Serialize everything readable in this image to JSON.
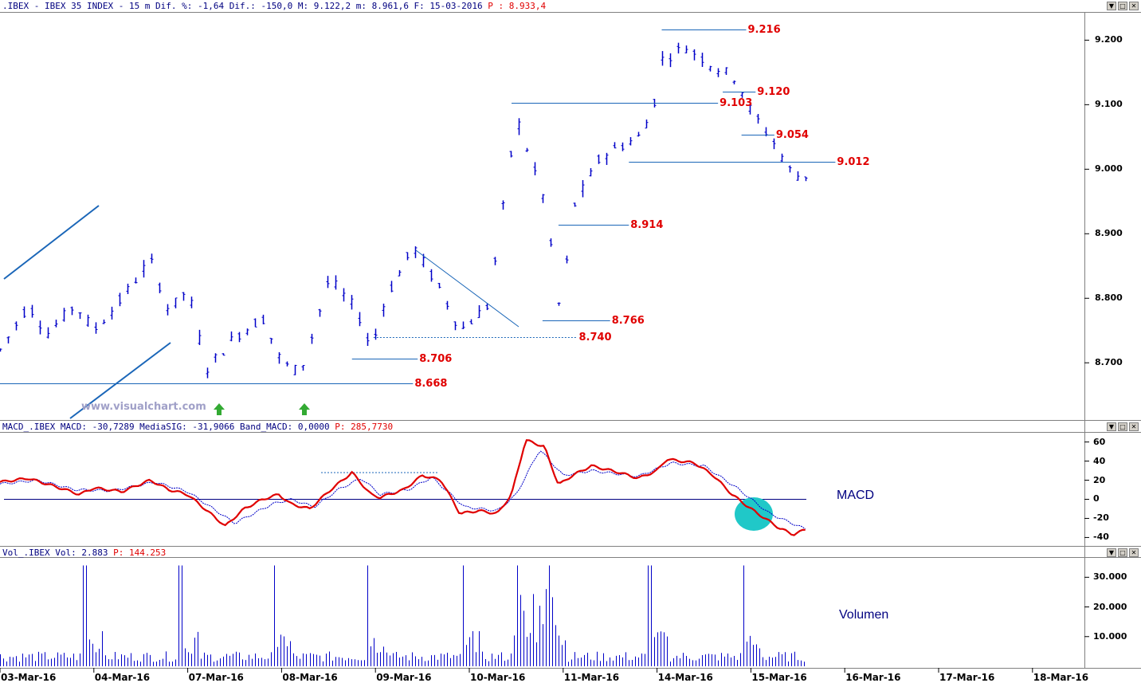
{
  "header": {
    "main_title": ".IBEX - IBEX 35 INDEX -  15 m Dif. %: -1,64 Dif.: -150,0 M: 9.122,2 m: 8.961,6 F: 15-03-2016",
    "main_price": "P : 8.933,4",
    "macd_title": "MACD_.IBEX MACD: -30,7289 MediaSIG: -31,9066 Band_MACD: 0,0000",
    "macd_price": "P: 285,7730",
    "vol_title": "Vol_.IBEX Vol: 2.883",
    "vol_price": "P: 144.253"
  },
  "window_buttons": {
    "minimize": "▼",
    "maximize": "□",
    "close": "✕"
  },
  "watermark": "www.visualchart.com",
  "panel_labels": {
    "macd": "MACD",
    "volume": "Volumen"
  },
  "colors": {
    "price": "#0000c8",
    "level_line": "#1a66b8",
    "level_text": "#e00000",
    "macd": "#e00000",
    "signal": "#0000c8",
    "highlight": "#20c8c8"
  },
  "chart_data": [
    {
      "type": "candlestick",
      "title": "IBEX 35 INDEX 15 m",
      "x_dates": [
        "03-Mar-16",
        "04-Mar-16",
        "07-Mar-16",
        "08-Mar-16",
        "09-Mar-16",
        "10-Mar-16",
        "11-Mar-16",
        "14-Mar-16",
        "15-Mar-16",
        "16-Mar-16",
        "17-Mar-16",
        "18-Mar-16"
      ],
      "yticks": [
        "8.700",
        "8.800",
        "8.900",
        "9.000",
        "9.100",
        "9.200"
      ],
      "ylim": [
        8620,
        9240
      ],
      "price_waypoints": [
        {
          "d": 0.0,
          "p": 8720
        },
        {
          "d": 0.3,
          "p": 8790
        },
        {
          "d": 0.5,
          "p": 8745
        },
        {
          "d": 0.8,
          "p": 8790
        },
        {
          "d": 1.0,
          "p": 8750
        },
        {
          "d": 1.3,
          "p": 8800
        },
        {
          "d": 1.6,
          "p": 8860
        },
        {
          "d": 1.8,
          "p": 8780
        },
        {
          "d": 2.0,
          "p": 8815
        },
        {
          "d": 2.2,
          "p": 8690
        },
        {
          "d": 2.5,
          "p": 8740
        },
        {
          "d": 2.8,
          "p": 8770
        },
        {
          "d": 3.0,
          "p": 8700
        },
        {
          "d": 3.2,
          "p": 8685
        },
        {
          "d": 3.5,
          "p": 8830
        },
        {
          "d": 3.8,
          "p": 8780
        },
        {
          "d": 3.95,
          "p": 8720
        },
        {
          "d": 4.1,
          "p": 8800
        },
        {
          "d": 4.4,
          "p": 8880
        },
        {
          "d": 4.7,
          "p": 8810
        },
        {
          "d": 4.9,
          "p": 8750
        },
        {
          "d": 5.2,
          "p": 8790
        },
        {
          "d": 5.5,
          "p": 9080
        },
        {
          "d": 5.8,
          "p": 8950
        },
        {
          "d": 5.97,
          "p": 8770
        },
        {
          "d": 6.1,
          "p": 8940
        },
        {
          "d": 6.4,
          "p": 9020
        },
        {
          "d": 6.8,
          "p": 9050
        },
        {
          "d": 6.95,
          "p": 9090
        },
        {
          "d": 7.05,
          "p": 9170
        },
        {
          "d": 7.3,
          "p": 9190
        },
        {
          "d": 7.6,
          "p": 9160
        },
        {
          "d": 7.85,
          "p": 9140
        },
        {
          "d": 8.0,
          "p": 9090
        },
        {
          "d": 8.25,
          "p": 9040
        },
        {
          "d": 8.45,
          "p": 8990
        },
        {
          "d": 8.6,
          "p": 8990
        }
      ],
      "levels": [
        {
          "label": "9.216",
          "value": 9216,
          "from": 7.05,
          "to": 7.95
        },
        {
          "label": "9.120",
          "value": 9120,
          "from": 7.7,
          "to": 8.05
        },
        {
          "label": "9.103",
          "value": 9103,
          "from": 5.45,
          "to": 7.65
        },
        {
          "label": "9.054",
          "value": 9054,
          "from": 7.9,
          "to": 8.25
        },
        {
          "label": "9.012",
          "value": 9012,
          "from": 6.7,
          "to": 8.9
        },
        {
          "label": "8.914",
          "value": 8914,
          "from": 5.95,
          "to": 6.7
        },
        {
          "label": "8.766",
          "value": 8766,
          "from": 5.78,
          "to": 6.5
        },
        {
          "label": "8.740",
          "value": 8740,
          "from": 3.98,
          "to": 6.15
        },
        {
          "label": "8.706",
          "value": 8706,
          "from": 3.75,
          "to": 4.45
        },
        {
          "label": "8.668",
          "value": 8668,
          "from": 0.0,
          "to": 4.4
        }
      ]
    },
    {
      "type": "line",
      "title": "MACD",
      "yticks": [
        "60",
        "40",
        "20",
        "0",
        "-20",
        "-40"
      ],
      "ylim": [
        -48,
        68
      ],
      "series": [
        {
          "name": "MACD",
          "waypoints": [
            {
              "d": 0.0,
              "v": 18
            },
            {
              "d": 0.3,
              "v": 22
            },
            {
              "d": 0.7,
              "v": 10
            },
            {
              "d": 0.85,
              "v": 5
            },
            {
              "d": 1.0,
              "v": 12
            },
            {
              "d": 1.3,
              "v": 8
            },
            {
              "d": 1.6,
              "v": 20
            },
            {
              "d": 1.8,
              "v": 10
            },
            {
              "d": 2.0,
              "v": 5
            },
            {
              "d": 2.4,
              "v": -28
            },
            {
              "d": 2.6,
              "v": -10
            },
            {
              "d": 2.8,
              "v": 0
            },
            {
              "d": 2.97,
              "v": 5
            },
            {
              "d": 3.1,
              "v": -5
            },
            {
              "d": 3.3,
              "v": -10
            },
            {
              "d": 3.5,
              "v": 8
            },
            {
              "d": 3.75,
              "v": 28
            },
            {
              "d": 3.95,
              "v": 5
            },
            {
              "d": 4.05,
              "v": 2
            },
            {
              "d": 4.3,
              "v": 10
            },
            {
              "d": 4.5,
              "v": 25
            },
            {
              "d": 4.7,
              "v": 20
            },
            {
              "d": 4.9,
              "v": -15
            },
            {
              "d": 5.1,
              "v": -12
            },
            {
              "d": 5.3,
              "v": -15
            },
            {
              "d": 5.45,
              "v": 5
            },
            {
              "d": 5.6,
              "v": 62
            },
            {
              "d": 5.8,
              "v": 55
            },
            {
              "d": 5.95,
              "v": 15
            },
            {
              "d": 6.1,
              "v": 25
            },
            {
              "d": 6.3,
              "v": 35
            },
            {
              "d": 6.6,
              "v": 28
            },
            {
              "d": 6.8,
              "v": 22
            },
            {
              "d": 7.0,
              "v": 30
            },
            {
              "d": 7.1,
              "v": 42
            },
            {
              "d": 7.4,
              "v": 38
            },
            {
              "d": 7.6,
              "v": 25
            },
            {
              "d": 7.8,
              "v": 5
            },
            {
              "d": 8.0,
              "v": -10
            },
            {
              "d": 8.3,
              "v": -30
            },
            {
              "d": 8.45,
              "v": -37
            },
            {
              "d": 8.6,
              "v": -31
            }
          ]
        },
        {
          "name": "MediaSIG",
          "waypoints": [
            {
              "d": 0.0,
              "v": 16
            },
            {
              "d": 0.4,
              "v": 20
            },
            {
              "d": 0.8,
              "v": 10
            },
            {
              "d": 1.2,
              "v": 9
            },
            {
              "d": 1.65,
              "v": 18
            },
            {
              "d": 2.0,
              "v": 8
            },
            {
              "d": 2.5,
              "v": -25
            },
            {
              "d": 2.9,
              "v": -5
            },
            {
              "d": 3.1,
              "v": 0
            },
            {
              "d": 3.35,
              "v": -8
            },
            {
              "d": 3.6,
              "v": 10
            },
            {
              "d": 3.85,
              "v": 22
            },
            {
              "d": 4.05,
              "v": 5
            },
            {
              "d": 4.35,
              "v": 10
            },
            {
              "d": 4.6,
              "v": 23
            },
            {
              "d": 4.95,
              "v": -8
            },
            {
              "d": 5.3,
              "v": -12
            },
            {
              "d": 5.5,
              "v": 5
            },
            {
              "d": 5.75,
              "v": 52
            },
            {
              "d": 6.0,
              "v": 25
            },
            {
              "d": 6.3,
              "v": 30
            },
            {
              "d": 6.8,
              "v": 24
            },
            {
              "d": 7.15,
              "v": 38
            },
            {
              "d": 7.5,
              "v": 35
            },
            {
              "d": 7.85,
              "v": 12
            },
            {
              "d": 8.2,
              "v": -15
            },
            {
              "d": 8.6,
              "v": -32
            }
          ]
        }
      ]
    },
    {
      "type": "bar",
      "title": "Volumen",
      "yticks": [
        "10.000",
        "20.000",
        "30.000"
      ],
      "ylim": [
        0,
        36000
      ],
      "session_open_spikes": [
        {
          "d": 0.9,
          "v": 34000
        },
        {
          "d": 1.92,
          "v": 34000
        },
        {
          "d": 2.92,
          "v": 34000
        },
        {
          "d": 3.92,
          "v": 34000
        },
        {
          "d": 4.92,
          "v": 34000
        },
        {
          "d": 5.5,
          "v": 34000
        },
        {
          "d": 5.85,
          "v": 34000
        },
        {
          "d": 6.92,
          "v": 34000
        },
        {
          "d": 7.92,
          "v": 34000
        }
      ]
    }
  ]
}
